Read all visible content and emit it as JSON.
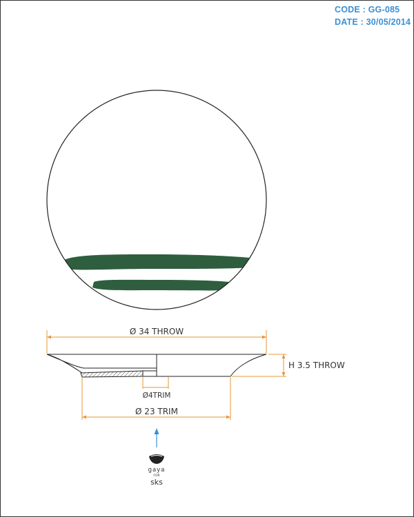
{
  "header": {
    "code": "CODE : GG-085",
    "date": "DATE : 30/05/2014"
  },
  "dimensions": {
    "throw_diameter": "Ø 34 THROW",
    "throw_height": "H 3.5 THROW",
    "trim_hole": "Ø4TRIM",
    "trim_diameter": "Ø 23 TRIM"
  },
  "logo": {
    "brand": "gaya",
    "for": "FOR",
    "client": "sks"
  },
  "colors": {
    "accent": "#3a8fd6",
    "dimension": "#e8963a",
    "glaze_stripe": "#2e5e3e",
    "outline": "#222222"
  }
}
